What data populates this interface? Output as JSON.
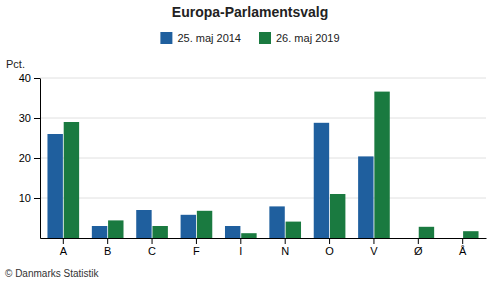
{
  "chart_data": {
    "type": "bar",
    "title": "Europa-Parlamentsvalg",
    "categories": [
      "A",
      "B",
      "C",
      "F",
      "I",
      "N",
      "O",
      "V",
      "Ø",
      "Å"
    ],
    "series": [
      {
        "name": "25. maj 2014",
        "color": "#1f5f9e",
        "values": [
          26.0,
          3.0,
          7.0,
          5.8,
          3.0,
          7.9,
          28.8,
          20.4,
          0.0,
          0.0
        ]
      },
      {
        "name": "26. maj 2019",
        "color": "#1a7a40",
        "values": [
          29.0,
          4.4,
          3.0,
          6.8,
          1.2,
          4.1,
          11.0,
          36.6,
          2.8,
          1.7
        ]
      }
    ],
    "ylabel": "Pct.",
    "ylim": [
      0,
      40
    ],
    "yticks": [
      10,
      20,
      30,
      40
    ],
    "grid": true,
    "legend": "top",
    "annotations": [
      "© Danmarks Statistik"
    ]
  }
}
